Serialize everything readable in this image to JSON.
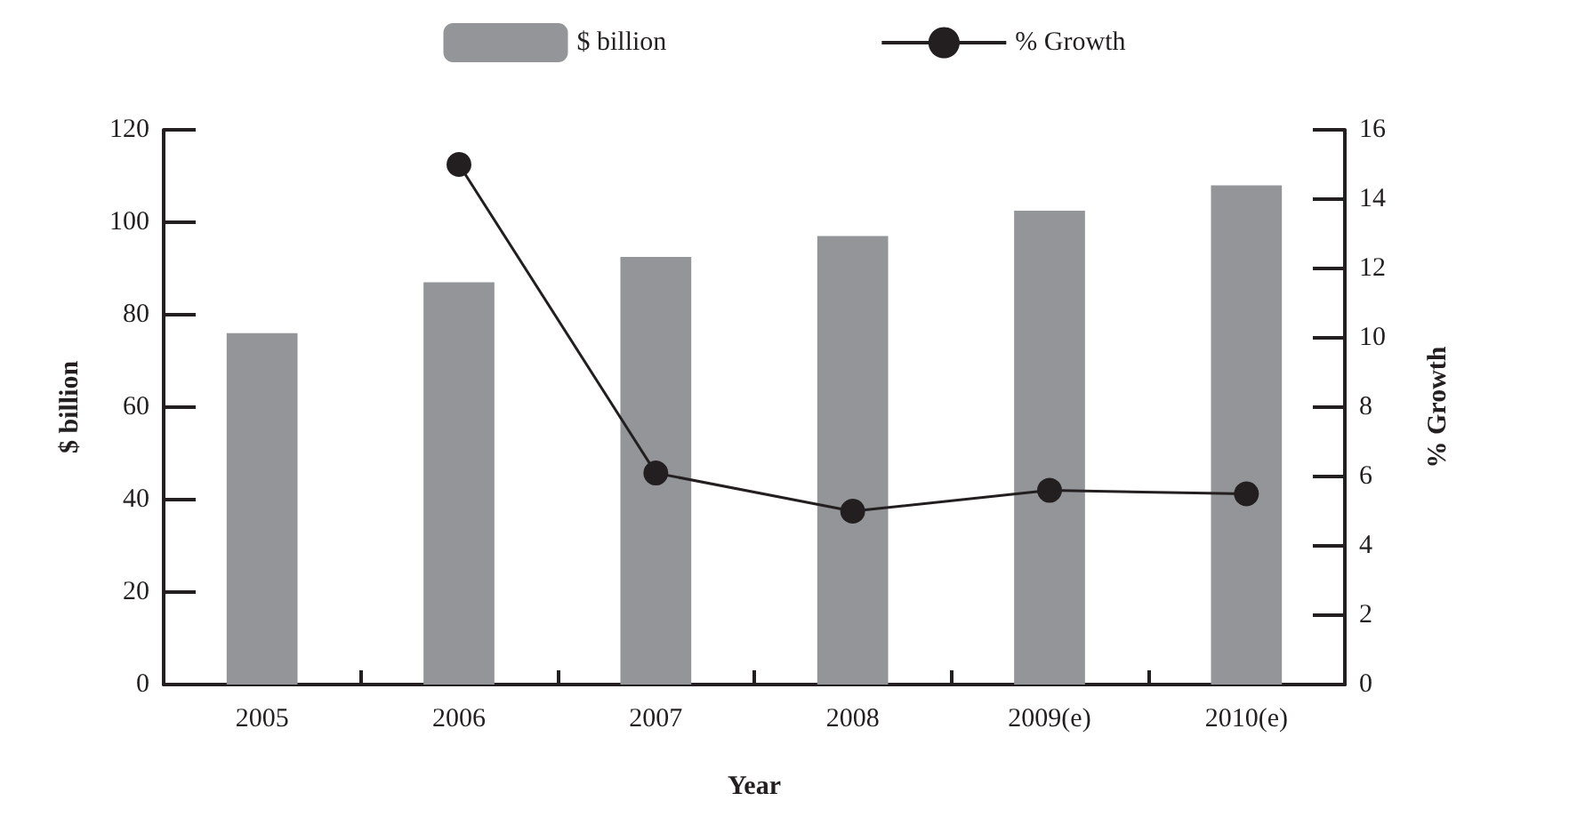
{
  "chart_data": {
    "type": "bar",
    "xlabel": "Year",
    "ylabel": "$ billion",
    "y2label": "% Growth",
    "categories": [
      "2005",
      "2006",
      "2007",
      "2008",
      "2009(e)",
      "2010(e)"
    ],
    "series": [
      {
        "name": "$ billion",
        "color": "#939598",
        "values": [
          76,
          87,
          92.5,
          97,
          102.5,
          108
        ]
      },
      {
        "name": "% Growth",
        "type": "line",
        "axis": "y2",
        "color": "#231f20",
        "marker": "circle",
        "values": [
          null,
          15,
          6.1,
          5,
          5.6,
          5.5
        ]
      }
    ],
    "ylim": [
      0,
      120
    ],
    "yticks": [
      0,
      20,
      40,
      60,
      80,
      100,
      120
    ],
    "y2lim": [
      0,
      16
    ],
    "y2ticks": [
      0,
      2,
      4,
      6,
      8,
      10,
      12,
      14,
      16
    ],
    "grid": false,
    "legend": "top"
  }
}
